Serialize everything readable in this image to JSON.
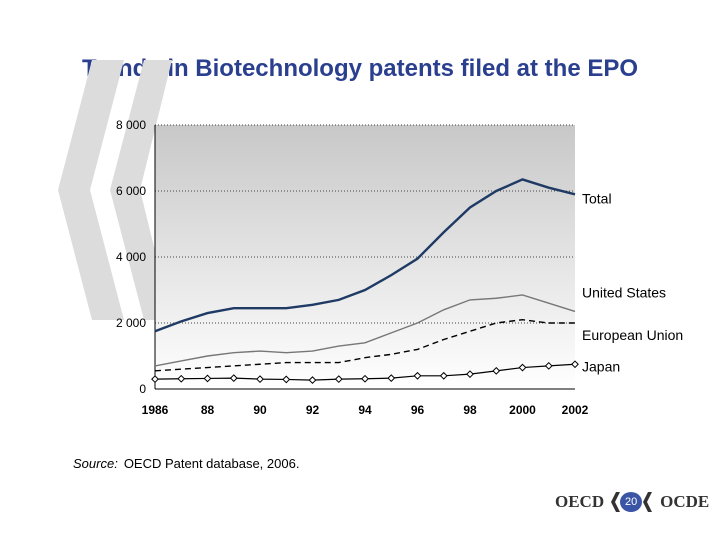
{
  "title": "Trends in Biotechnology patents filed at the EPO",
  "source": {
    "label": "Source:",
    "text": "OECD Patent database, 2006."
  },
  "footer": {
    "logo_left": "OECD",
    "logo_right": "OCDE",
    "page_number": "20"
  },
  "colors": {
    "title": "#2b3f8f",
    "total_line": "#1f3a64",
    "other_lines": "#000000",
    "plot_bg_top": "#c8c8c8",
    "plot_bg_bottom": "#ffffff"
  },
  "chart_data": {
    "type": "line",
    "title": "Trends in Biotechnology patents filed at the EPO",
    "xlabel": "",
    "ylabel": "",
    "x": [
      1986,
      1987,
      1988,
      1989,
      1990,
      1991,
      1992,
      1993,
      1994,
      1995,
      1996,
      1997,
      1998,
      1999,
      2000,
      2001,
      2002
    ],
    "x_tick_labels": [
      "1986",
      "88",
      "90",
      "92",
      "94",
      "96",
      "98",
      "2000",
      "2002"
    ],
    "x_tick_values": [
      1986,
      1988,
      1990,
      1992,
      1994,
      1996,
      1998,
      2000,
      2002
    ],
    "y_ticks": [
      0,
      2000,
      4000,
      6000,
      8000
    ],
    "y_tick_labels": [
      "0",
      "2 000",
      "4 000",
      "6 000",
      "8 000"
    ],
    "ylim": [
      0,
      8000
    ],
    "grid": "horizontal dotted",
    "series": [
      {
        "name": "Total",
        "style": "solid-thick",
        "values": [
          1750,
          2050,
          2300,
          2450,
          2450,
          2450,
          2550,
          2700,
          3000,
          3450,
          3950,
          4750,
          5500,
          6000,
          6350,
          6100,
          5900
        ]
      },
      {
        "name": "United States",
        "style": "solid-gray",
        "values": [
          700,
          850,
          1000,
          1100,
          1150,
          1100,
          1150,
          1300,
          1400,
          1700,
          2000,
          2400,
          2700,
          2750,
          2850,
          2600,
          2350
        ]
      },
      {
        "name": "European Union",
        "style": "dashed",
        "values": [
          550,
          600,
          650,
          700,
          750,
          800,
          800,
          800,
          950,
          1050,
          1200,
          1500,
          1750,
          2000,
          2100,
          2000,
          2000
        ]
      },
      {
        "name": "Japan",
        "style": "diamond-markers",
        "values": [
          300,
          310,
          320,
          330,
          300,
          290,
          270,
          300,
          310,
          330,
          400,
          400,
          450,
          550,
          650,
          700,
          750
        ]
      }
    ]
  }
}
